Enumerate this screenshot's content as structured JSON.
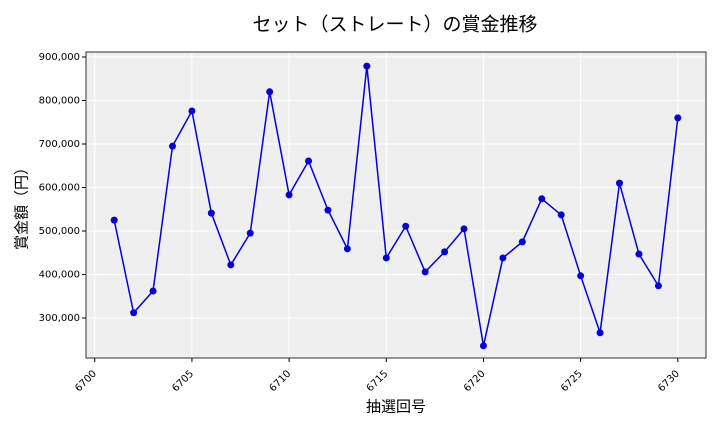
{
  "chart_data": {
    "type": "line",
    "title": "セット（ストレート）の賞金推移",
    "xlabel": "抽選回号",
    "ylabel": "賞金額（円）",
    "x": [
      6701,
      6702,
      6703,
      6704,
      6705,
      6706,
      6707,
      6708,
      6709,
      6710,
      6711,
      6712,
      6713,
      6714,
      6715,
      6716,
      6717,
      6718,
      6719,
      6720,
      6721,
      6722,
      6723,
      6724,
      6725,
      6726,
      6727,
      6728,
      6729,
      6730
    ],
    "series": [
      {
        "color": "#0000dd",
        "values": [
          525000,
          312000,
          362000,
          695000,
          776000,
          541000,
          422000,
          495000,
          820000,
          583000,
          661000,
          548000,
          459000,
          879000,
          438000,
          511000,
          406000,
          452000,
          505000,
          236000,
          438000,
          475000,
          574000,
          537000,
          397000,
          266000,
          610000,
          447000,
          374000,
          760000
        ]
      }
    ],
    "xlim": [
      6699.55,
      6731.45
    ],
    "ylim": [
      208000,
      911500
    ],
    "xticks": [
      6700,
      6705,
      6710,
      6715,
      6720,
      6725,
      6730
    ],
    "yticks": [
      {
        "value": 300000,
        "label": "300,000"
      },
      {
        "value": 400000,
        "label": "400,000"
      },
      {
        "value": 500000,
        "label": "500,000"
      },
      {
        "value": 600000,
        "label": "600,000"
      },
      {
        "value": 700000,
        "label": "700,000"
      },
      {
        "value": 800000,
        "label": "800,000"
      },
      {
        "value": 900000,
        "label": "900,000"
      }
    ],
    "grid": true
  }
}
